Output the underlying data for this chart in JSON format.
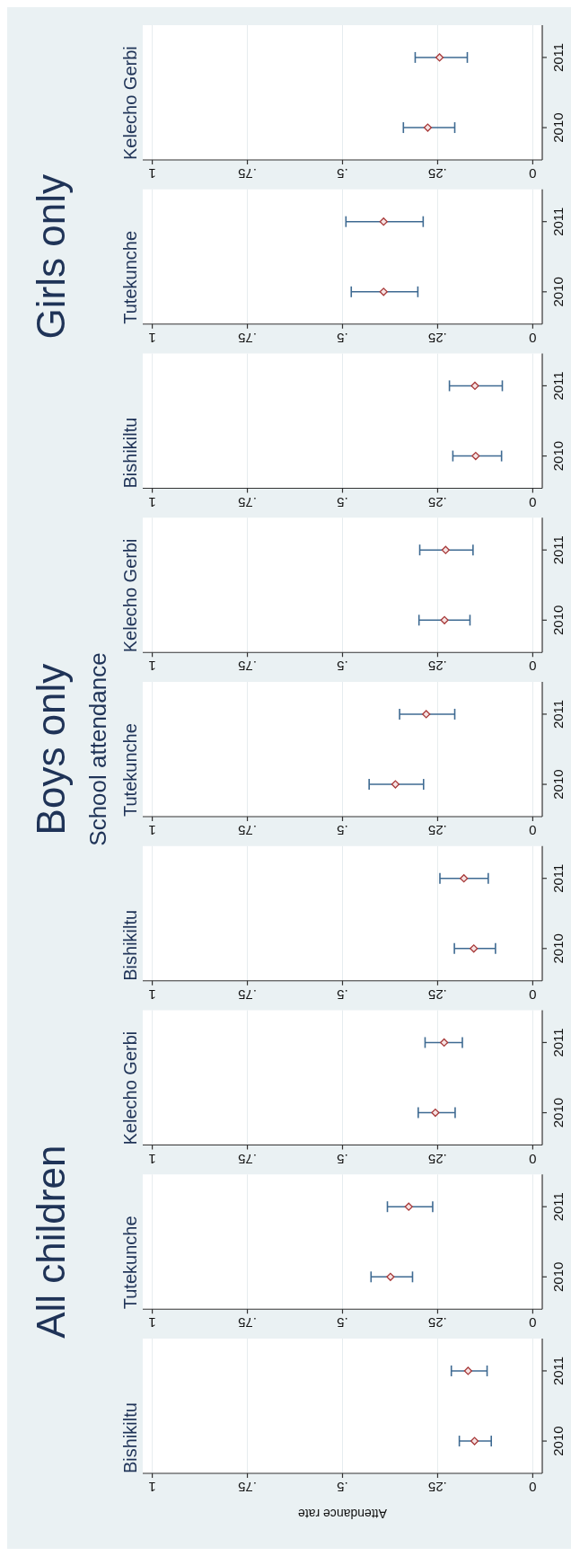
{
  "chart_data": [
    {
      "type": "scatter",
      "orientation": "horizontal",
      "title": "Bishikiltu",
      "xlabel": "Attendance rate",
      "categories": [
        "2011",
        "2010"
      ],
      "series": [
        {
          "color": "#a83a3a",
          "values": [
            0.17,
            0.153
          ],
          "errors": [
            [
              0.12,
              0.214
            ],
            [
              0.109,
              0.193
            ]
          ]
        }
      ],
      "xlim": [
        1.025,
        -0.025
      ],
      "xticks": [
        {
          "value": 1,
          "label": "1"
        },
        {
          "value": 0.75,
          "label": ".75"
        },
        {
          "value": 0.5,
          "label": ".5"
        },
        {
          "value": 0.25,
          "label": ".25"
        },
        {
          "value": 0,
          "label": "0"
        }
      ],
      "grid": "x",
      "marker": "diamond"
    },
    {
      "type": "scatter",
      "orientation": "horizontal",
      "title": "Tutekunche",
      "subtitle": "All children",
      "categories": [
        "2011",
        "2010"
      ],
      "series": [
        {
          "color": "#a83a3a",
          "values": [
            0.326,
            0.374
          ],
          "errors": [
            [
              0.263,
              0.382
            ],
            [
              0.316,
              0.425
            ]
          ]
        }
      ],
      "xlim": [
        1.025,
        -0.025
      ],
      "xticks": [
        {
          "value": 1,
          "label": "1"
        },
        {
          "value": 0.75,
          "label": ".75"
        },
        {
          "value": 0.5,
          "label": ".5"
        },
        {
          "value": 0.25,
          "label": ".25"
        },
        {
          "value": 0,
          "label": "0"
        }
      ],
      "grid": "x",
      "marker": "diamond"
    },
    {
      "type": "scatter",
      "orientation": "horizontal",
      "title": "Kelecho Gerbi",
      "categories": [
        "2011",
        "2010"
      ],
      "series": [
        {
          "color": "#a83a3a",
          "values": [
            0.233,
            0.256
          ],
          "errors": [
            [
              0.185,
              0.283
            ],
            [
              0.204,
              0.301
            ]
          ]
        }
      ],
      "xlim": [
        1.025,
        -0.025
      ],
      "xticks": [
        {
          "value": 1,
          "label": "1"
        },
        {
          "value": 0.75,
          "label": ".75"
        },
        {
          "value": 0.5,
          "label": ".5"
        },
        {
          "value": 0.25,
          "label": ".25"
        },
        {
          "value": 0,
          "label": "0"
        }
      ],
      "grid": "x",
      "marker": "diamond"
    },
    {
      "type": "scatter",
      "orientation": "horizontal",
      "title": "Bishikiltu",
      "categories": [
        "2011",
        "2010"
      ],
      "series": [
        {
          "color": "#a83a3a",
          "values": [
            0.181,
            0.155
          ],
          "errors": [
            [
              0.117,
              0.244
            ],
            [
              0.098,
              0.206
            ]
          ]
        }
      ],
      "xlim": [
        1.025,
        -0.025
      ],
      "xticks": [
        {
          "value": 1,
          "label": "1"
        },
        {
          "value": 0.75,
          "label": ".75"
        },
        {
          "value": 0.5,
          "label": ".5"
        },
        {
          "value": 0.25,
          "label": ".25"
        },
        {
          "value": 0,
          "label": "0"
        }
      ],
      "grid": "x",
      "marker": "diamond"
    },
    {
      "type": "scatter",
      "orientation": "horizontal",
      "title": "Tutekunche",
      "subtitle": "Boys only",
      "annotations": [
        "School attendance"
      ],
      "categories": [
        "2011",
        "2010"
      ],
      "series": [
        {
          "color": "#a83a3a",
          "values": [
            0.28,
            0.361
          ],
          "errors": [
            [
              0.205,
              0.35
            ],
            [
              0.287,
              0.43
            ]
          ]
        }
      ],
      "xlim": [
        1.025,
        -0.025
      ],
      "xticks": [
        {
          "value": 1,
          "label": "1"
        },
        {
          "value": 0.75,
          "label": ".75"
        },
        {
          "value": 0.5,
          "label": ".5"
        },
        {
          "value": 0.25,
          "label": ".25"
        },
        {
          "value": 0,
          "label": "0"
        }
      ],
      "grid": "x",
      "marker": "diamond"
    },
    {
      "type": "scatter",
      "orientation": "horizontal",
      "title": "Kelecho Gerbi",
      "categories": [
        "2011",
        "2010"
      ],
      "series": [
        {
          "color": "#a83a3a",
          "values": [
            0.229,
            0.232
          ],
          "errors": [
            [
              0.157,
              0.297
            ],
            [
              0.165,
              0.299
            ]
          ]
        }
      ],
      "xlim": [
        1.025,
        -0.025
      ],
      "xticks": [
        {
          "value": 1,
          "label": "1"
        },
        {
          "value": 0.75,
          "label": ".75"
        },
        {
          "value": 0.5,
          "label": ".5"
        },
        {
          "value": 0.25,
          "label": ".25"
        },
        {
          "value": 0,
          "label": "0"
        }
      ],
      "grid": "x",
      "marker": "diamond"
    },
    {
      "type": "scatter",
      "orientation": "horizontal",
      "title": "Bishikiltu",
      "categories": [
        "2011",
        "2010"
      ],
      "series": [
        {
          "color": "#a83a3a",
          "values": [
            0.152,
            0.15
          ],
          "errors": [
            [
              0.08,
              0.219
            ],
            [
              0.082,
              0.21
            ]
          ]
        }
      ],
      "xlim": [
        1.025,
        -0.025
      ],
      "xticks": [
        {
          "value": 1,
          "label": "1"
        },
        {
          "value": 0.75,
          "label": ".75"
        },
        {
          "value": 0.5,
          "label": ".5"
        },
        {
          "value": 0.25,
          "label": ".25"
        },
        {
          "value": 0,
          "label": "0"
        }
      ],
      "grid": "x",
      "marker": "diamond"
    },
    {
      "type": "scatter",
      "orientation": "horizontal",
      "title": "Tutekunche",
      "subtitle": "Girls only",
      "categories": [
        "2011",
        "2010"
      ],
      "series": [
        {
          "color": "#a83a3a",
          "values": [
            0.392,
            0.392
          ],
          "errors": [
            [
              0.288,
              0.491
            ],
            [
              0.302,
              0.477
            ]
          ]
        }
      ],
      "xlim": [
        1.025,
        -0.025
      ],
      "xticks": [
        {
          "value": 1,
          "label": "1"
        },
        {
          "value": 0.75,
          "label": ".75"
        },
        {
          "value": 0.5,
          "label": ".5"
        },
        {
          "value": 0.25,
          "label": ".25"
        },
        {
          "value": 0,
          "label": "0"
        }
      ],
      "grid": "x",
      "marker": "diamond"
    },
    {
      "type": "scatter",
      "orientation": "horizontal",
      "title": "Kelecho Gerbi",
      "categories": [
        "2011",
        "2010"
      ],
      "series": [
        {
          "color": "#a83a3a",
          "values": [
            0.245,
            0.276
          ],
          "errors": [
            [
              0.172,
              0.309
            ],
            [
              0.205,
              0.34
            ]
          ]
        }
      ],
      "xlim": [
        1.025,
        -0.025
      ],
      "xticks": [
        {
          "value": 1,
          "label": "1"
        },
        {
          "value": 0.75,
          "label": ".75"
        },
        {
          "value": 0.5,
          "label": ".5"
        },
        {
          "value": 0.25,
          "label": ".25"
        },
        {
          "value": 0,
          "label": "0"
        }
      ],
      "grid": "x",
      "marker": "diamond"
    }
  ]
}
